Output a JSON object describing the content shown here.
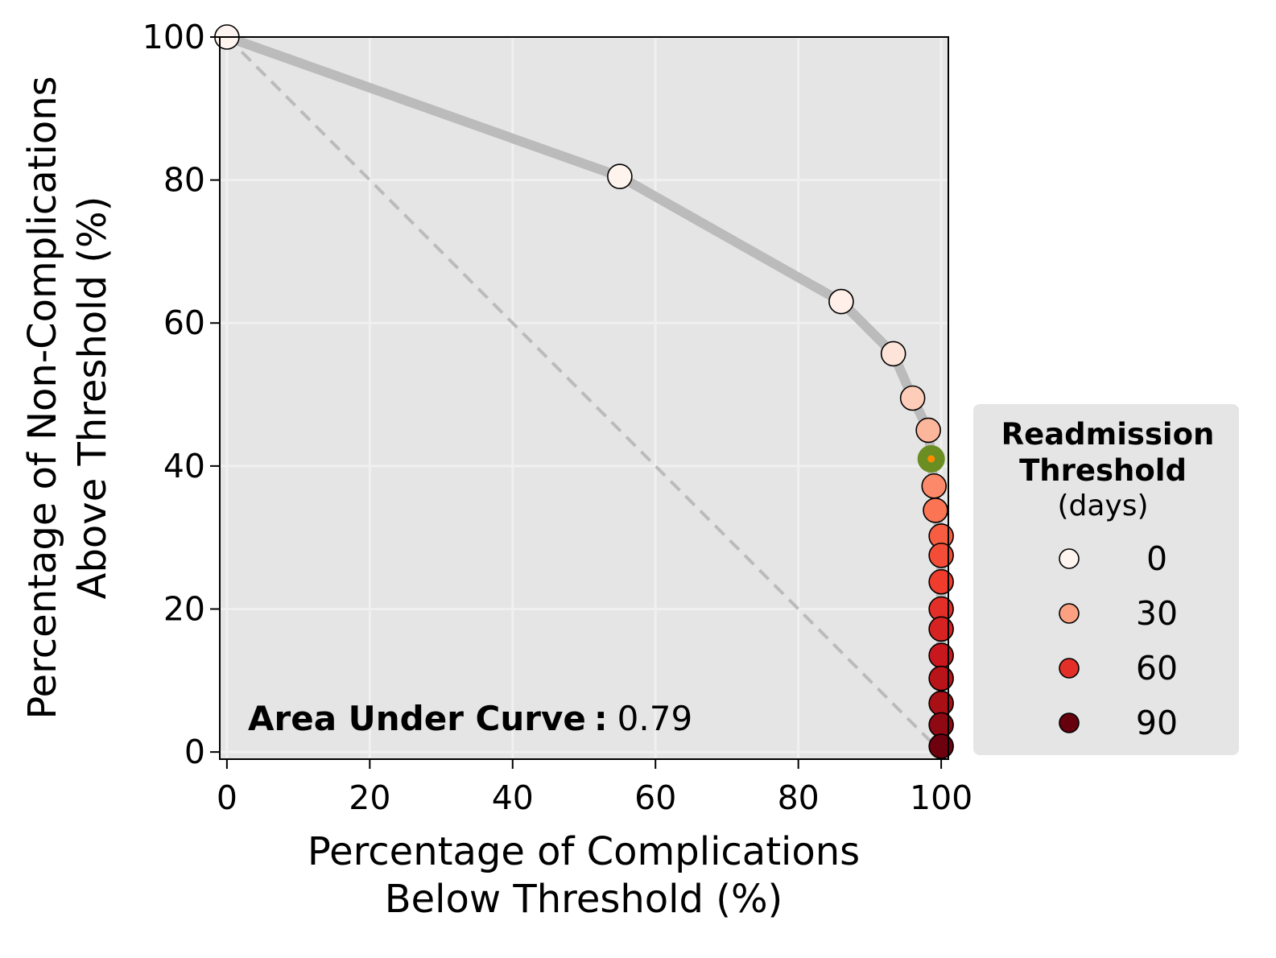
{
  "chart_data": {
    "type": "scatter",
    "xlabel_lines": [
      "Percentage of Complications",
      "Below Threshold (%)"
    ],
    "ylabel_lines": [
      "Percentage of Non-Complications",
      "Above Threshold (%)"
    ],
    "xlim": [
      -1,
      101
    ],
    "ylim": [
      -1,
      100
    ],
    "xticks": [
      0,
      20,
      40,
      60,
      80,
      100
    ],
    "yticks": [
      0,
      20,
      40,
      60,
      80,
      100
    ],
    "grid": true,
    "annotation": {
      "label": "Area Under Curve",
      "separator": ":",
      "value": "0.79"
    },
    "reference_line": {
      "style": "dashed",
      "from": [
        0,
        100
      ],
      "to": [
        100,
        0
      ]
    },
    "colors": {
      "axes_background": "#e5e5e5",
      "grid": "#f0f0f0",
      "curve": "#bbbbbb",
      "reference_line": "#bbbbbb",
      "highlight_fill": "#6b8e23",
      "highlight_center": "#ff8c00",
      "colormap": "Reds"
    },
    "points": [
      {
        "x": 0.0,
        "y": 100.0,
        "days": 0
      },
      {
        "x": 55.0,
        "y": 80.5,
        "days": 1
      },
      {
        "x": 86.0,
        "y": 63.0,
        "days": 3
      },
      {
        "x": 93.3,
        "y": 55.7,
        "days": 9
      },
      {
        "x": 96.0,
        "y": 49.5,
        "days": 17
      },
      {
        "x": 98.2,
        "y": 45.0,
        "days": 24
      },
      {
        "x": 98.6,
        "y": 41.0,
        "days": 30,
        "highlight": true
      },
      {
        "x": 99.0,
        "y": 37.2,
        "days": 36
      },
      {
        "x": 99.2,
        "y": 33.8,
        "days": 42
      },
      {
        "x": 100.0,
        "y": 30.2,
        "days": 48
      },
      {
        "x": 100.0,
        "y": 27.5,
        "days": 52
      },
      {
        "x": 100.0,
        "y": 23.8,
        "days": 56
      },
      {
        "x": 100.0,
        "y": 20.0,
        "days": 60
      },
      {
        "x": 100.0,
        "y": 17.2,
        "days": 64
      },
      {
        "x": 100.0,
        "y": 13.5,
        "days": 68
      },
      {
        "x": 100.0,
        "y": 10.3,
        "days": 73
      },
      {
        "x": 100.0,
        "y": 6.8,
        "days": 78
      },
      {
        "x": 100.0,
        "y": 3.8,
        "days": 83
      },
      {
        "x": 100.0,
        "y": 0.8,
        "days": 89
      }
    ],
    "legend": {
      "title_lines": [
        "Readmission",
        "Threshold"
      ],
      "subtitle": "(days)",
      "placement": "right",
      "entries": [
        {
          "label": "0",
          "days": 0
        },
        {
          "label": "30",
          "days": 30
        },
        {
          "label": "60",
          "days": 60
        },
        {
          "label": "90",
          "days": 90
        }
      ]
    }
  }
}
